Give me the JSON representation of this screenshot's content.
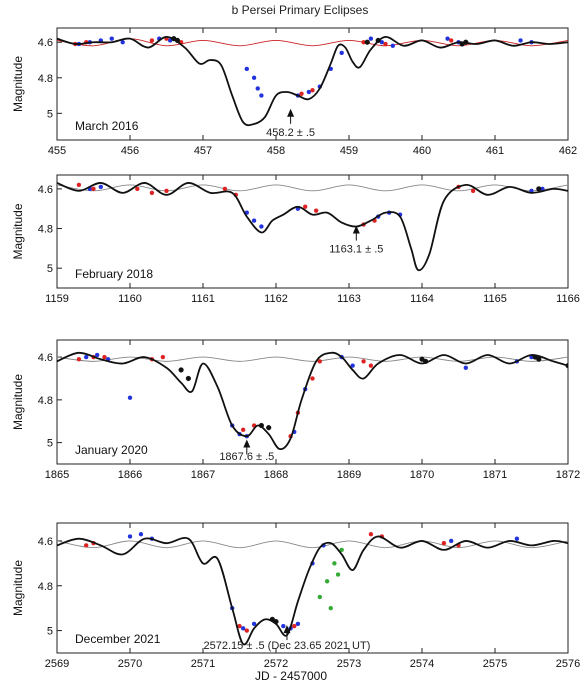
{
  "figure_title": "b Persei Primary Eclipses",
  "xlabel": "JD - 2457000",
  "colors": {
    "model": "#111111",
    "baseline_p1": "#cc2222",
    "baseline": "#888888",
    "obs_blue": "#2233dd",
    "obs_red": "#dd2222",
    "obs_black": "#111111",
    "obs_green": "#33aa33"
  },
  "chart_data": [
    {
      "type": "line",
      "label": "March 2016",
      "ylabel": "Magnitude",
      "xlim": [
        455,
        462
      ],
      "xticks": [
        "455",
        "456",
        "457",
        "458",
        "459",
        "460",
        "461",
        "462"
      ],
      "ylim": [
        5.15,
        4.52
      ],
      "yticks": [
        "4.6",
        "4.8",
        "5"
      ],
      "annotation": {
        "text": "458.2 ± .5",
        "x": 458.2,
        "y": 4.98
      },
      "model": {
        "x": [
          455.0,
          455.25,
          455.5,
          455.75,
          456.0,
          456.25,
          456.5,
          456.75,
          456.95,
          457.1,
          457.25,
          457.4,
          457.55,
          457.7,
          457.85,
          458.0,
          458.15,
          458.3,
          458.45,
          458.6,
          458.75,
          458.85,
          458.95,
          459.05,
          459.15,
          459.3,
          459.5,
          459.75,
          460.0,
          460.25,
          460.5,
          460.75,
          461.0,
          461.25,
          461.5,
          461.75,
          462.0
        ],
        "y": [
          4.58,
          4.61,
          4.6,
          4.6,
          4.58,
          4.63,
          4.57,
          4.63,
          4.72,
          4.7,
          4.73,
          4.9,
          5.05,
          5.06,
          5.02,
          4.9,
          4.88,
          4.9,
          4.92,
          4.86,
          4.72,
          4.62,
          4.63,
          4.71,
          4.74,
          4.64,
          4.57,
          4.62,
          4.59,
          4.63,
          4.6,
          4.61,
          4.59,
          4.62,
          4.6,
          4.61,
          4.6
        ]
      },
      "baseline": {
        "x": [
          455.0,
          455.5,
          456.0,
          456.5,
          457.0,
          457.5,
          458.0,
          458.5,
          459.0,
          459.5,
          460.0,
          460.5,
          461.0,
          461.5,
          462.0
        ],
        "y": [
          4.59,
          4.62,
          4.58,
          4.62,
          4.59,
          4.62,
          4.59,
          4.62,
          4.59,
          4.62,
          4.59,
          4.62,
          4.59,
          4.62,
          4.59
        ]
      },
      "observations": [
        {
          "color": "blue",
          "x": [
            455.3,
            455.45,
            455.6,
            455.75,
            455.9,
            456.4,
            456.55,
            457.6,
            457.7,
            457.75,
            457.8,
            458.3,
            458.45,
            458.6,
            458.75,
            458.9,
            459.3,
            459.45,
            459.6,
            460.35,
            460.5,
            461.35,
            461.5
          ],
          "y": [
            4.61,
            4.6,
            4.59,
            4.58,
            4.6,
            4.58,
            4.59,
            4.75,
            4.8,
            4.86,
            4.9,
            4.9,
            4.88,
            4.85,
            4.75,
            4.66,
            4.58,
            4.6,
            4.62,
            4.58,
            4.6,
            4.59,
            4.6
          ]
        },
        {
          "color": "red",
          "x": [
            455.25,
            455.4,
            456.3,
            456.5,
            456.7,
            458.35,
            458.5,
            459.2,
            459.5,
            460.4
          ],
          "y": [
            4.61,
            4.6,
            4.59,
            4.58,
            4.6,
            4.89,
            4.87,
            4.6,
            4.61,
            4.59
          ]
        },
        {
          "color": "black",
          "x": [
            456.6,
            456.65,
            459.25,
            459.4,
            460.55,
            460.6
          ],
          "y": [
            4.58,
            4.59,
            4.6,
            4.59,
            4.61,
            4.6
          ]
        }
      ]
    },
    {
      "type": "line",
      "label": "February 2018",
      "ylabel": "Magnitude",
      "xlim": [
        1159,
        1166
      ],
      "xticks": [
        "1159",
        "1160",
        "1161",
        "1162",
        "1163",
        "1164",
        "1165",
        "1166"
      ],
      "ylim": [
        5.1,
        4.53
      ],
      "yticks": [
        "4.6",
        "4.8",
        "5"
      ],
      "annotation": {
        "text": "1163.1 ± .5",
        "x": 1163.1,
        "y": 4.79
      },
      "model": {
        "x": [
          1159.0,
          1159.3,
          1159.6,
          1159.9,
          1160.2,
          1160.5,
          1160.8,
          1161.1,
          1161.4,
          1161.6,
          1161.8,
          1161.95,
          1162.1,
          1162.3,
          1162.5,
          1162.7,
          1162.9,
          1163.1,
          1163.3,
          1163.5,
          1163.7,
          1163.85,
          1163.95,
          1164.1,
          1164.3,
          1164.6,
          1164.9,
          1165.2,
          1165.5,
          1165.8,
          1166.0
        ],
        "y": [
          4.57,
          4.61,
          4.57,
          4.62,
          4.57,
          4.63,
          4.57,
          4.62,
          4.62,
          4.74,
          4.82,
          4.76,
          4.73,
          4.69,
          4.73,
          4.72,
          4.77,
          4.79,
          4.76,
          4.72,
          4.74,
          4.9,
          5.01,
          4.93,
          4.66,
          4.58,
          4.63,
          4.59,
          4.62,
          4.6,
          4.61
        ]
      },
      "baseline": {
        "x": [
          1159.0,
          1159.5,
          1160.0,
          1160.5,
          1161.0,
          1161.5,
          1162.0,
          1162.5,
          1163.0,
          1163.5,
          1164.0,
          1164.5,
          1165.0,
          1165.5,
          1166.0
        ],
        "y": [
          4.58,
          4.61,
          4.58,
          4.61,
          4.58,
          4.61,
          4.58,
          4.61,
          4.58,
          4.61,
          4.58,
          4.61,
          4.58,
          4.61,
          4.58
        ]
      },
      "observations": [
        {
          "color": "blue",
          "x": [
            1159.45,
            1159.6,
            1161.6,
            1161.7,
            1161.8,
            1162.3,
            1163.4,
            1163.55,
            1163.7,
            1165.5,
            1165.65
          ],
          "y": [
            4.6,
            4.59,
            4.72,
            4.76,
            4.79,
            4.7,
            4.74,
            4.72,
            4.73,
            4.61,
            4.6
          ]
        },
        {
          "color": "red",
          "x": [
            1159.3,
            1159.5,
            1160.1,
            1160.3,
            1160.5,
            1161.3,
            1161.45,
            1162.4,
            1162.55,
            1163.2,
            1163.35,
            1164.5,
            1164.7
          ],
          "y": [
            4.58,
            4.6,
            4.6,
            4.62,
            4.61,
            4.6,
            4.63,
            4.69,
            4.71,
            4.78,
            4.76,
            4.59,
            4.61
          ]
        },
        {
          "color": "black",
          "x": [
            1165.6
          ],
          "y": [
            4.6
          ]
        }
      ]
    },
    {
      "type": "line",
      "label": "January 2020",
      "ylabel": "Magnitude",
      "xlim": [
        1865,
        1872
      ],
      "xticks": [
        "1865",
        "1866",
        "1867",
        "1868",
        "1869",
        "1870",
        "1871",
        "1872"
      ],
      "ylim": [
        5.1,
        4.52
      ],
      "yticks": [
        "4.6",
        "4.8",
        "5"
      ],
      "annotation": {
        "text": "1867.6 ± .5",
        "x": 1867.6,
        "y": 4.99
      },
      "model": {
        "x": [
          1865.0,
          1865.3,
          1865.6,
          1865.9,
          1866.2,
          1866.5,
          1866.7,
          1866.85,
          1867.0,
          1867.2,
          1867.4,
          1867.6,
          1867.75,
          1867.9,
          1868.05,
          1868.2,
          1868.35,
          1868.55,
          1868.75,
          1868.9,
          1869.05,
          1869.2,
          1869.4,
          1869.7,
          1870.0,
          1870.3,
          1870.6,
          1870.9,
          1871.2,
          1871.5,
          1871.8,
          1872.0
        ],
        "y": [
          4.62,
          4.58,
          4.61,
          4.63,
          4.6,
          4.65,
          4.72,
          4.76,
          4.63,
          4.74,
          4.92,
          4.97,
          4.92,
          4.96,
          5.03,
          4.98,
          4.8,
          4.62,
          4.58,
          4.6,
          4.66,
          4.7,
          4.63,
          4.59,
          4.63,
          4.59,
          4.63,
          4.59,
          4.63,
          4.59,
          4.62,
          4.64
        ]
      },
      "baseline": {
        "x": [
          1865.0,
          1865.5,
          1866.0,
          1866.5,
          1867.0,
          1867.5,
          1868.0,
          1868.5,
          1869.0,
          1869.5,
          1870.0,
          1870.5,
          1871.0,
          1871.5,
          1872.0
        ],
        "y": [
          4.6,
          4.62,
          4.6,
          4.62,
          4.6,
          4.62,
          4.6,
          4.62,
          4.6,
          4.62,
          4.6,
          4.62,
          4.6,
          4.62,
          4.6
        ]
      },
      "observations": [
        {
          "color": "blue",
          "x": [
            1865.4,
            1865.55,
            1865.7,
            1866.0,
            1867.4,
            1867.5,
            1867.6,
            1868.25,
            1868.4,
            1868.9,
            1869.05,
            1870.6,
            1871.3,
            1871.5
          ],
          "y": [
            4.6,
            4.59,
            4.61,
            4.79,
            4.92,
            4.96,
            4.97,
            4.95,
            4.75,
            4.6,
            4.64,
            4.65,
            4.62,
            4.6
          ]
        },
        {
          "color": "red",
          "x": [
            1865.3,
            1865.5,
            1865.65,
            1866.3,
            1866.45,
            1867.55,
            1867.7,
            1868.2,
            1868.3,
            1868.5,
            1868.6,
            1869.2,
            1869.3
          ],
          "y": [
            4.61,
            4.6,
            4.6,
            4.61,
            4.6,
            4.94,
            4.92,
            4.97,
            4.86,
            4.7,
            4.62,
            4.62,
            4.64
          ]
        },
        {
          "color": "black",
          "x": [
            1866.7,
            1866.8,
            1867.8,
            1867.9,
            1870.0,
            1870.05,
            1871.55,
            1871.6,
            1872.0
          ],
          "y": [
            4.66,
            4.7,
            4.92,
            4.93,
            4.61,
            4.62,
            4.6,
            4.61,
            4.64
          ]
        }
      ]
    },
    {
      "type": "line",
      "label": "December 2021",
      "ylabel": "Magnitude",
      "xlim": [
        2569,
        2576
      ],
      "xticks": [
        "2569",
        "2570",
        "2571",
        "2572",
        "2573",
        "2574",
        "2575",
        "2576"
      ],
      "ylim": [
        5.1,
        4.52
      ],
      "yticks": [
        "4.6",
        "4.8",
        "5"
      ],
      "annotation": {
        "text": "2572.15 ± .5   (Dec 23.65 2021 UT)",
        "x": 2572.15,
        "y": 4.98
      },
      "model": {
        "x": [
          2569.0,
          2569.3,
          2569.6,
          2569.9,
          2570.2,
          2570.5,
          2570.8,
          2571.0,
          2571.2,
          2571.4,
          2571.55,
          2571.7,
          2571.85,
          2572.0,
          2572.15,
          2572.3,
          2572.45,
          2572.6,
          2572.75,
          2572.9,
          2573.05,
          2573.2,
          2573.4,
          2573.7,
          2574.0,
          2574.3,
          2574.6,
          2574.9,
          2575.2,
          2575.5,
          2575.8,
          2576.0
        ],
        "y": [
          4.62,
          4.59,
          4.62,
          4.66,
          4.59,
          4.61,
          4.59,
          4.7,
          4.68,
          4.9,
          5.06,
          4.99,
          4.95,
          4.97,
          5.02,
          4.87,
          4.73,
          4.63,
          4.61,
          4.66,
          4.73,
          4.64,
          4.58,
          4.63,
          4.6,
          4.64,
          4.6,
          4.63,
          4.6,
          4.62,
          4.6,
          4.61
        ]
      },
      "baseline": {
        "x": [
          2569.0,
          2569.5,
          2570.0,
          2570.5,
          2571.0,
          2571.5,
          2572.0,
          2572.5,
          2573.0,
          2573.5,
          2574.0,
          2574.5,
          2575.0,
          2575.5,
          2576.0
        ],
        "y": [
          4.6,
          4.63,
          4.6,
          4.63,
          4.6,
          4.63,
          4.6,
          4.63,
          4.6,
          4.63,
          4.6,
          4.63,
          4.6,
          4.63,
          4.6
        ]
      },
      "observations": [
        {
          "color": "blue",
          "x": [
            2570.0,
            2570.15,
            2570.3,
            2571.4,
            2571.55,
            2571.7,
            2572.1,
            2572.2,
            2572.3,
            2572.5,
            2572.65,
            2574.4,
            2575.3
          ],
          "y": [
            4.58,
            4.57,
            4.59,
            4.9,
            4.99,
            4.97,
            4.98,
            4.99,
            4.97,
            4.7,
            4.62,
            4.6,
            4.59
          ]
        },
        {
          "color": "red",
          "x": [
            2569.4,
            2569.5,
            2571.5,
            2571.6,
            2572.25,
            2573.3,
            2573.45,
            2574.3,
            2574.5
          ],
          "y": [
            4.62,
            4.61,
            4.98,
            5.0,
            4.98,
            4.57,
            4.58,
            4.61,
            4.62
          ]
        },
        {
          "color": "green",
          "x": [
            2572.6,
            2572.7,
            2572.8,
            2572.9,
            2572.75,
            2572.85
          ],
          "y": [
            4.85,
            4.78,
            4.7,
            4.64,
            4.9,
            4.75
          ]
        },
        {
          "color": "black",
          "x": [
            2571.95,
            2572.0
          ],
          "y": [
            4.95,
            4.96
          ]
        }
      ]
    }
  ]
}
